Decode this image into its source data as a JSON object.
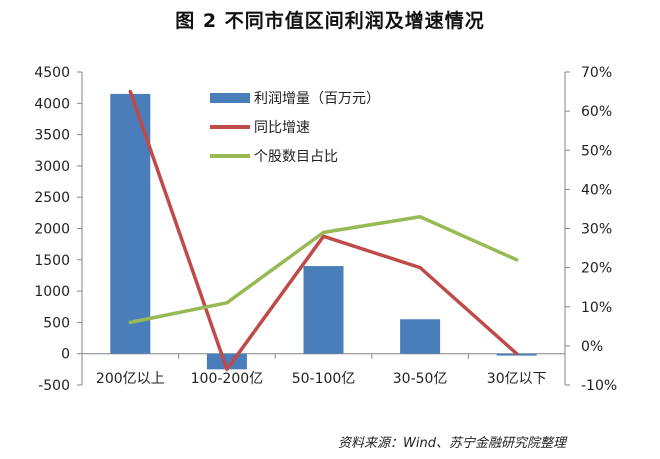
{
  "title": "图 2  不同市值区间利润及增速情况",
  "source": "资料来源：Wind、苏宁金融研究院整理",
  "colors": {
    "bar": "#4a7ebb",
    "growth": "#be4b48",
    "share": "#98b954",
    "axis": "#868686"
  },
  "chart_data": {
    "type": "bar",
    "title": "图 2  不同市值区间利润及增速情况",
    "xlabel": "",
    "ylabel": "",
    "categories": [
      "200亿以上",
      "100-200亿",
      "50-100亿",
      "30-50亿",
      "30亿以下"
    ],
    "series": [
      {
        "name": "利润增量（百万元）",
        "type": "bar",
        "axis": "left",
        "values": [
          4150,
          -250,
          1400,
          550,
          -30
        ]
      },
      {
        "name": "同比增速",
        "type": "line",
        "axis": "right",
        "values": [
          0.65,
          -0.06,
          0.28,
          0.2,
          -0.02
        ]
      },
      {
        "name": "个股数目占比",
        "type": "line",
        "axis": "right",
        "values": [
          0.06,
          0.11,
          0.29,
          0.33,
          0.22
        ]
      }
    ],
    "ylim": [
      -500,
      4500
    ],
    "y2lim": [
      -0.1,
      0.7
    ],
    "yticks": [
      "4500",
      "4000",
      "3500",
      "3000",
      "2500",
      "2000",
      "1500",
      "1000",
      "500",
      "0",
      "-500"
    ],
    "y2ticks": [
      "70%",
      "60%",
      "50%",
      "40%",
      "30%",
      "20%",
      "10%",
      "0%",
      "-10%"
    ],
    "grid": false,
    "legend_position": "upper center inside"
  }
}
